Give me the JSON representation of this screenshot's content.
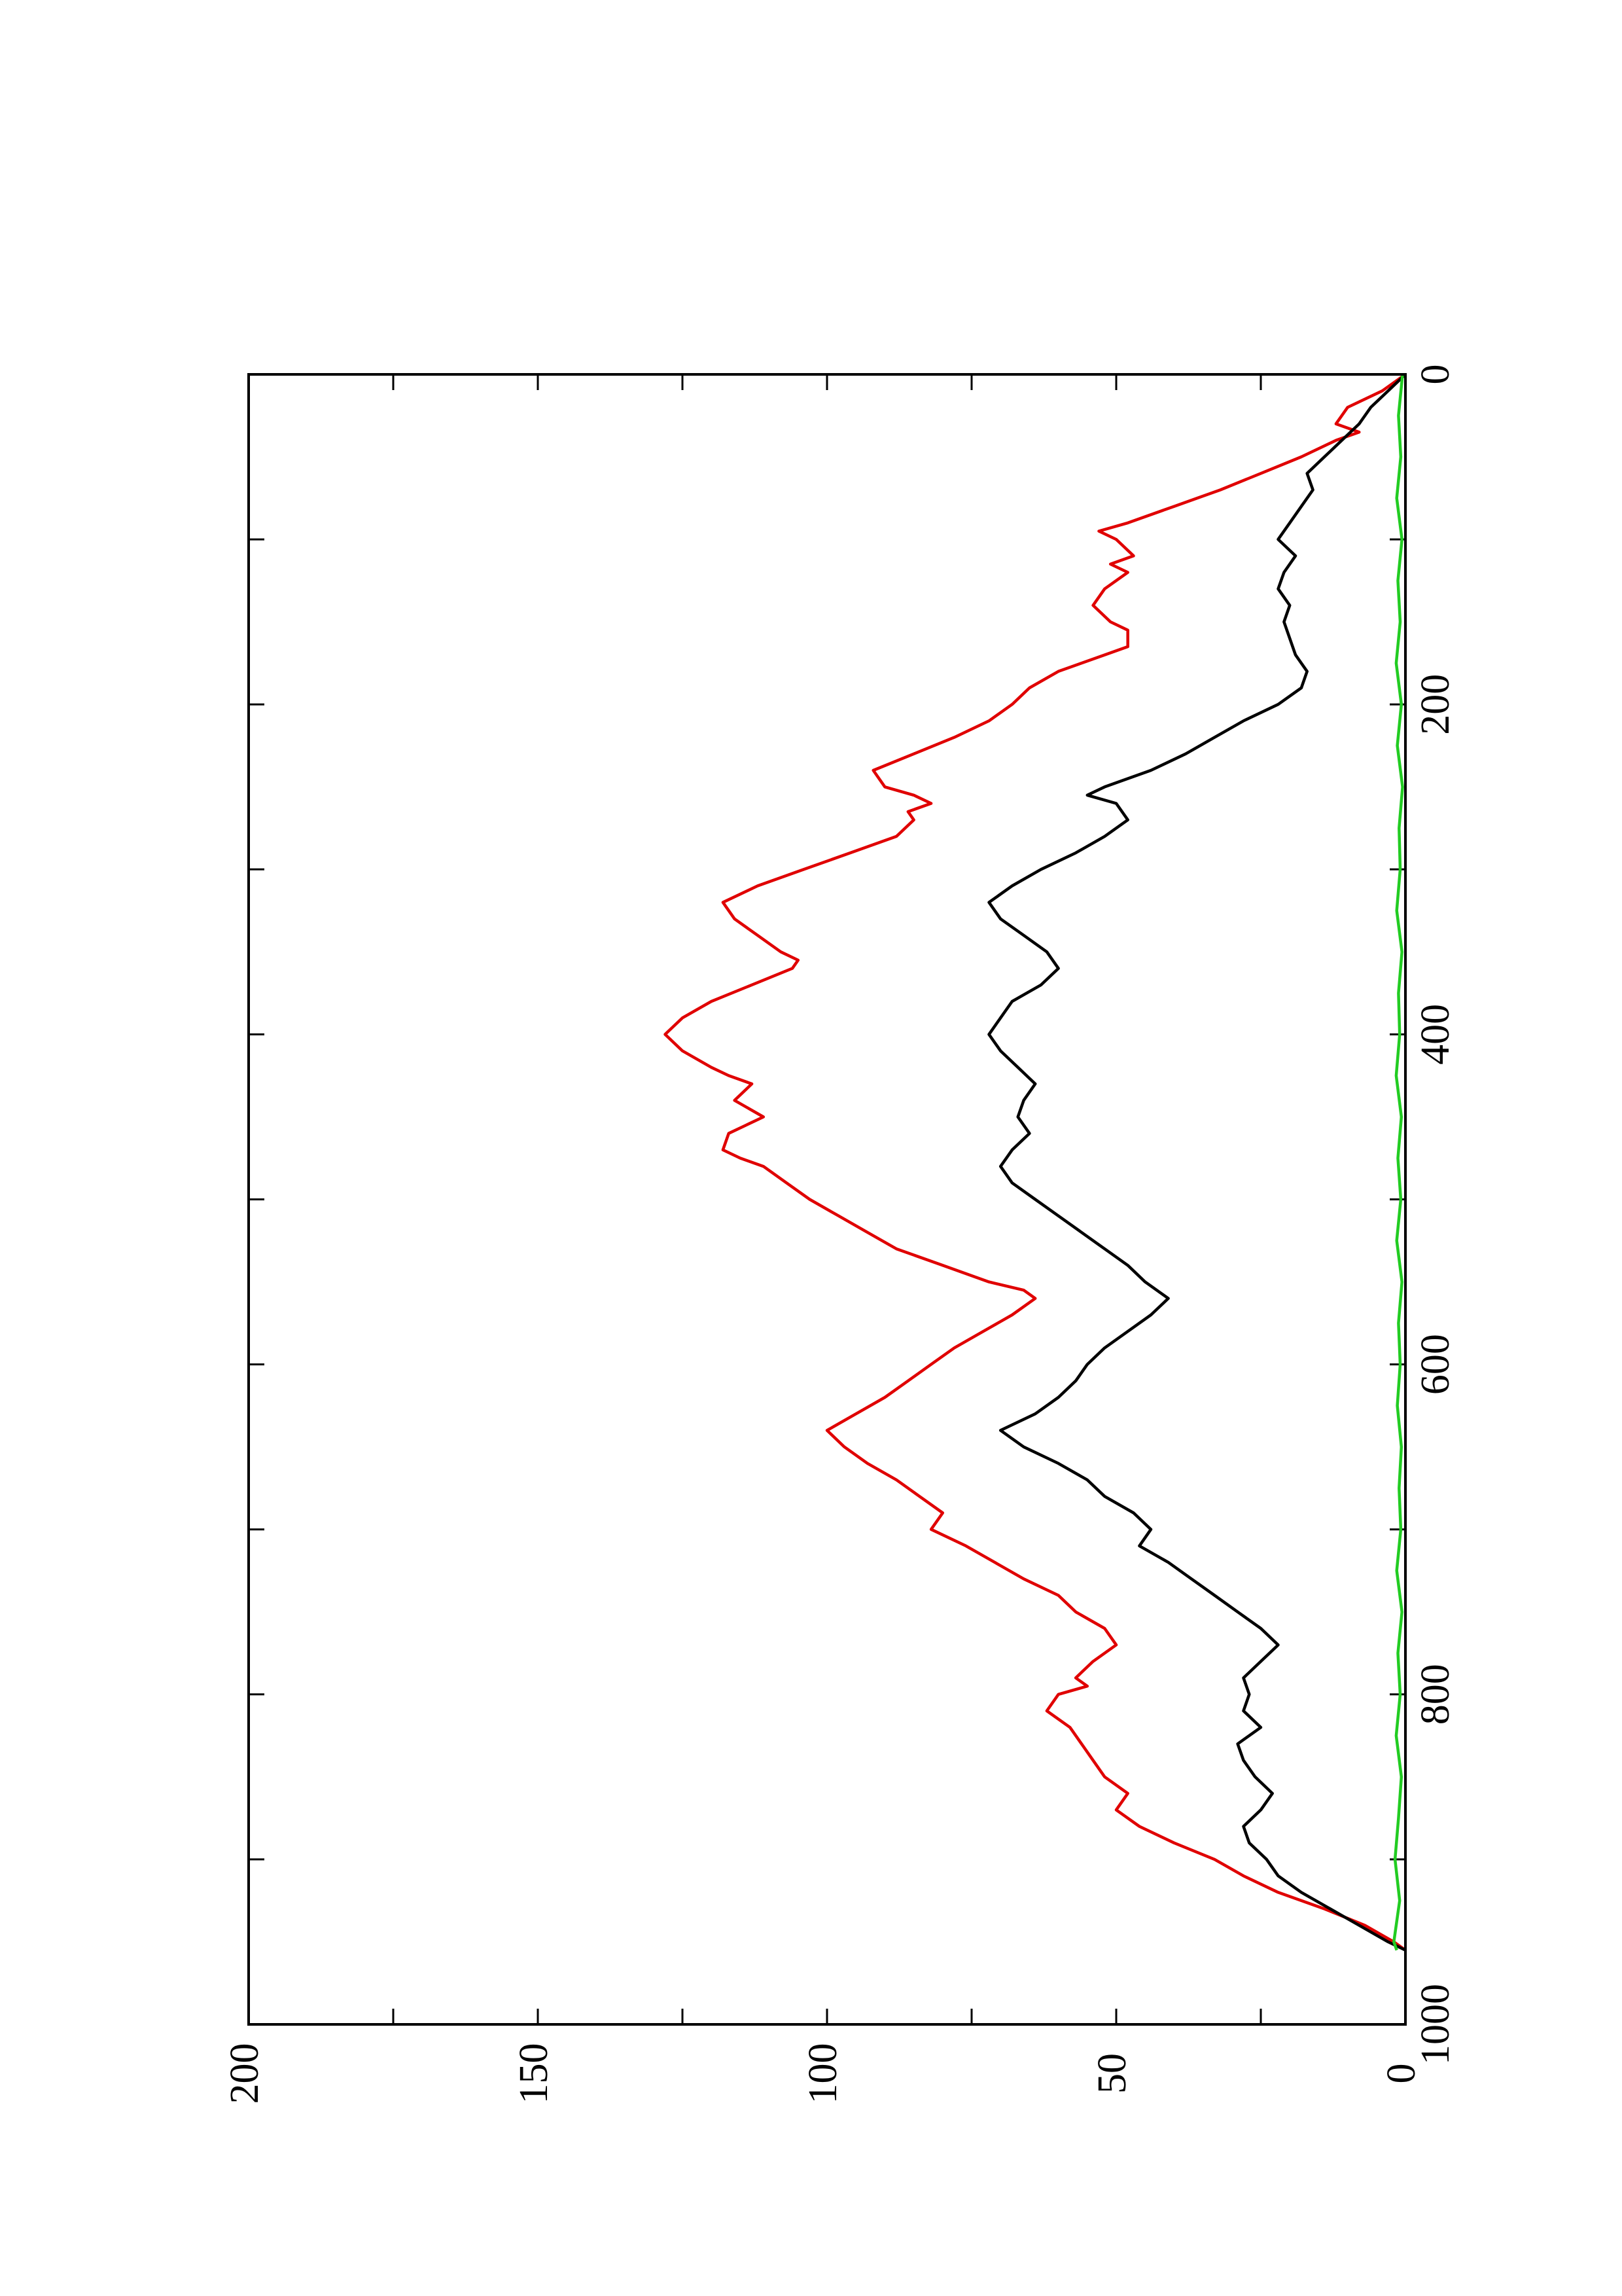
{
  "chart_data": {
    "type": "line",
    "orientation": "rotated-90-clockwise",
    "title": "",
    "xlabel": "",
    "ylabel": "",
    "xlim": [
      0,
      1000
    ],
    "ylim": [
      0,
      200
    ],
    "x_ticks": [
      0,
      200,
      400,
      600,
      800,
      1000
    ],
    "y_ticks": [
      0,
      50,
      100,
      150,
      200
    ],
    "grid": false,
    "legend": "none",
    "series": [
      {
        "color": "#e00000",
        "x": [
          0,
          10,
          20,
          30,
          35,
          40,
          50,
          60,
          70,
          80,
          90,
          95,
          100,
          110,
          115,
          120,
          130,
          140,
          150,
          155,
          165,
          170,
          180,
          190,
          200,
          210,
          220,
          230,
          240,
          250,
          255,
          260,
          265,
          270,
          280,
          290,
          300,
          310,
          320,
          330,
          340,
          350,
          355,
          360,
          370,
          380,
          390,
          400,
          410,
          420,
          425,
          430,
          440,
          450,
          455,
          460,
          470,
          475,
          480,
          490,
          500,
          510,
          520,
          530,
          540,
          550,
          555,
          560,
          570,
          580,
          590,
          600,
          610,
          620,
          630,
          640,
          650,
          660,
          670,
          680,
          690,
          700,
          710,
          720,
          730,
          740,
          750,
          760,
          770,
          780,
          790,
          795,
          800,
          810,
          820,
          830,
          840,
          850,
          860,
          870,
          880,
          890,
          900,
          910,
          920,
          930,
          940,
          950,
          955
        ],
        "y": [
          0,
          4,
          10,
          12,
          8,
          12,
          18,
          25,
          32,
          40,
          48,
          53,
          50,
          47,
          51,
          48,
          52,
          54,
          51,
          48,
          48,
          52,
          60,
          65,
          68,
          72,
          78,
          85,
          92,
          90,
          85,
          82,
          86,
          85,
          88,
          96,
          104,
          112,
          118,
          116,
          112,
          108,
          105,
          106,
          113,
          120,
          125,
          128,
          125,
          120,
          117,
          113,
          116,
          111,
          114,
          117,
          118,
          115,
          111,
          107,
          103,
          98,
          93,
          88,
          80,
          72,
          66,
          64,
          68,
          73,
          78,
          82,
          86,
          90,
          95,
          100,
          97,
          93,
          88,
          84,
          80,
          82,
          76,
          71,
          66,
          60,
          57,
          52,
          50,
          54,
          57,
          55,
          60,
          62,
          58,
          56,
          54,
          52,
          48,
          50,
          46,
          40,
          33,
          28,
          22,
          14,
          7,
          2,
          0
        ]
      },
      {
        "color": "#000000",
        "x": [
          0,
          10,
          20,
          30,
          40,
          50,
          60,
          70,
          80,
          90,
          100,
          110,
          120,
          130,
          140,
          150,
          160,
          170,
          180,
          190,
          200,
          210,
          220,
          230,
          240,
          250,
          255,
          260,
          270,
          280,
          290,
          300,
          310,
          320,
          330,
          340,
          350,
          360,
          370,
          380,
          390,
          400,
          410,
          420,
          430,
          440,
          450,
          460,
          470,
          480,
          490,
          500,
          510,
          520,
          530,
          540,
          550,
          560,
          570,
          580,
          590,
          600,
          610,
          620,
          630,
          640,
          650,
          660,
          670,
          680,
          690,
          700,
          710,
          720,
          730,
          740,
          750,
          760,
          770,
          780,
          790,
          800,
          810,
          820,
          830,
          840,
          850,
          860,
          870,
          880,
          890,
          900,
          910,
          920,
          930,
          940,
          950,
          955
        ],
        "y": [
          0,
          3,
          6,
          8,
          11,
          14,
          17,
          16,
          18,
          20,
          22,
          19,
          21,
          22,
          20,
          21,
          20,
          19,
          17,
          18,
          22,
          28,
          33,
          38,
          44,
          52,
          55,
          50,
          48,
          52,
          57,
          63,
          68,
          72,
          70,
          66,
          62,
          60,
          63,
          68,
          70,
          72,
          70,
          67,
          64,
          66,
          67,
          65,
          68,
          70,
          68,
          64,
          60,
          56,
          52,
          48,
          45,
          41,
          44,
          48,
          52,
          55,
          57,
          60,
          64,
          70,
          66,
          60,
          55,
          52,
          47,
          44,
          46,
          41,
          37,
          33,
          29,
          25,
          22,
          25,
          28,
          27,
          28,
          25,
          29,
          28,
          26,
          23,
          25,
          28,
          27,
          24,
          22,
          18,
          13,
          8,
          3,
          0
        ]
      },
      {
        "color": "#22cc22",
        "x": [
          0,
          25,
          50,
          75,
          100,
          125,
          150,
          175,
          200,
          225,
          250,
          275,
          300,
          325,
          350,
          375,
          400,
          425,
          450,
          475,
          500,
          525,
          550,
          575,
          600,
          625,
          650,
          675,
          700,
          725,
          750,
          775,
          800,
          825,
          850,
          875,
          900,
          925,
          950,
          955
        ],
        "y": [
          0.5,
          1.2,
          0.8,
          1.5,
          0.6,
          1.3,
          0.9,
          1.6,
          0.7,
          1.4,
          0.5,
          1.1,
          0.9,
          1.5,
          0.6,
          1.2,
          1.0,
          1.6,
          0.7,
          1.3,
          0.8,
          1.5,
          0.6,
          1.2,
          0.9,
          1.4,
          0.7,
          1.1,
          0.8,
          1.5,
          0.6,
          1.3,
          0.9,
          1.6,
          0.7,
          1.2,
          1.8,
          1.0,
          2.0,
          1.5
        ]
      }
    ]
  }
}
